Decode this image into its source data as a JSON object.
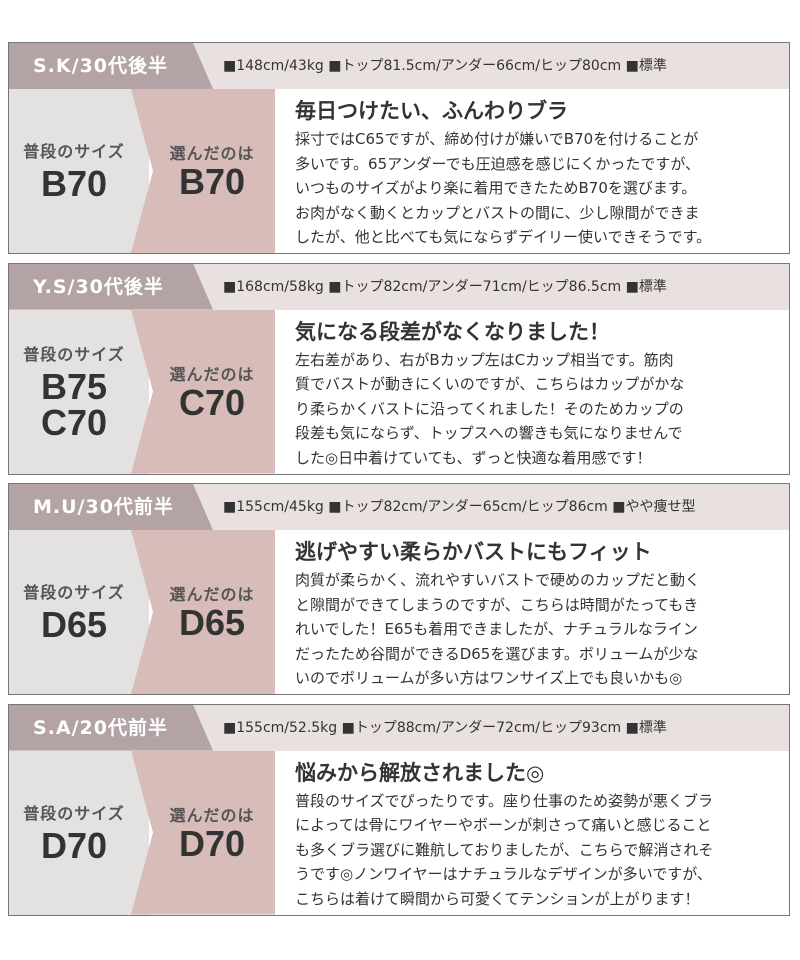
{
  "cards": [
    {
      "name": "S.K/30代後半",
      "specs": "■148cm/43kg ■トップ81.5cm/アンダー66cm/ヒップ80cm ■標準",
      "usual_label": "普段のサイズ",
      "usual_size": [
        "B70"
      ],
      "chosen_label": "選んだのは",
      "chosen_size": "B70",
      "heading": "毎日つけたい、ふんわりブラ",
      "body": [
        "採寸ではC65ですが、締め付けが嫌いでB70を付けることが",
        "多いです。65アンダーでも圧迫感を感じにくかったですが、",
        "いつものサイズがより楽に着用できたためB70を選びます。",
        "お肉がなく動くとカップとバストの間に、少し隙間ができま",
        "したが、他と比べても気にならずデイリー使いできそうです。"
      ]
    },
    {
      "name": "Y.S/30代後半",
      "specs": "■168cm/58kg ■トップ82cm/アンダー71cm/ヒップ86.5cm ■標準",
      "usual_label": "普段のサイズ",
      "usual_size": [
        "B75",
        "C70"
      ],
      "chosen_label": "選んだのは",
      "chosen_size": "C70",
      "heading": "気になる段差がなくなりました！",
      "body": [
        "左右差があり、右がBカップ左はCカップ相当です。筋肉",
        "質でバストが動きにくいのですが、こちらはカップがかな",
        "り柔らかくバストに沿ってくれました！そのためカップの",
        "段差も気にならず、トップスへの響きも気になりませんで",
        "した◎日中着けていても、ずっと快適な着用感です！"
      ]
    },
    {
      "name": "M.U/30代前半",
      "specs": "■155cm/45kg ■トップ82cm/アンダー65cm/ヒップ86cm ■やや痩せ型",
      "usual_label": "普段のサイズ",
      "usual_size": [
        "D65"
      ],
      "chosen_label": "選んだのは",
      "chosen_size": "D65",
      "heading": "逃げやすい柔らかバストにもフィット",
      "body": [
        "肉質が柔らかく、流れやすいバストで硬めのカップだと動く",
        "と隙間ができてしまうのですが、こちらは時間がたってもき",
        "れいでした！E65も着用できましたが、ナチュラルなライン",
        "だったため谷間ができるD65を選びます。ボリュームが少な",
        "いのでボリュームが多い方はワンサイズ上でも良いかも◎"
      ]
    },
    {
      "name": "S.A/20代前半",
      "specs": "■155cm/52.5kg ■トップ88cm/アンダー72cm/ヒップ93cm ■標準",
      "usual_label": "普段のサイズ",
      "usual_size": [
        "D70"
      ],
      "chosen_label": "選んだのは",
      "chosen_size": "D70",
      "heading": "悩みから解放されました◎",
      "body": [
        "普段のサイズでぴったりです。座り仕事のため姿勢が悪くブラ",
        "によっては骨にワイヤーやボーンが刺さって痛いと感じること",
        "も多くブラ選びに難航しておりましたが、こちらで解消されそ",
        "うです◎ノンワイヤーはナチュラルなデザインが多いですが、",
        "こちらは着けて瞬間から可愛くてテンションが上がります！"
      ]
    }
  ]
}
